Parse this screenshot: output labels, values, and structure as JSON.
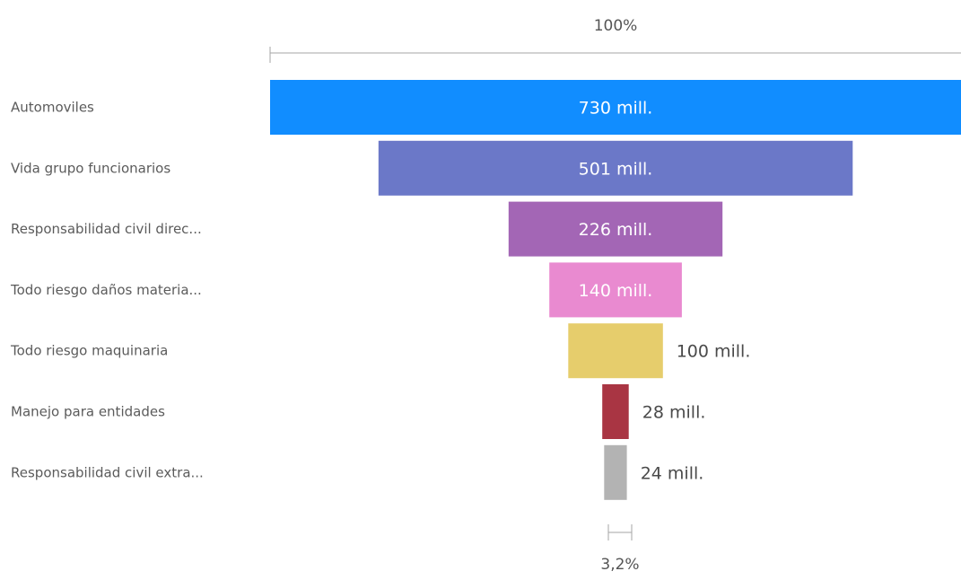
{
  "chart_data": {
    "type": "funnel",
    "categories": [
      "Automoviles",
      "Vida grupo funcionarios",
      "Responsabilidad civil direc...",
      "Todo riesgo daños materia...",
      "Todo riesgo maquinaria",
      "Manejo para entidades",
      "Responsabilidad civil extra..."
    ],
    "values": [
      730,
      501,
      226,
      140,
      100,
      28,
      24
    ],
    "value_labels": [
      "730 mill.",
      "501 mill.",
      "226 mill.",
      "140 mill.",
      "100 mill.",
      "28 mill.",
      "24 mill."
    ],
    "colors": [
      "#118dff",
      "#6b78c8",
      "#a366b5",
      "#e98ad0",
      "#e6cd6c",
      "#a93543",
      "#b3b3b3"
    ],
    "top_percent_label": "100%",
    "bottom_percent_label": "3,2%",
    "label_color_inside": "#ffffff",
    "label_color_outside": "#4a4a4a"
  }
}
